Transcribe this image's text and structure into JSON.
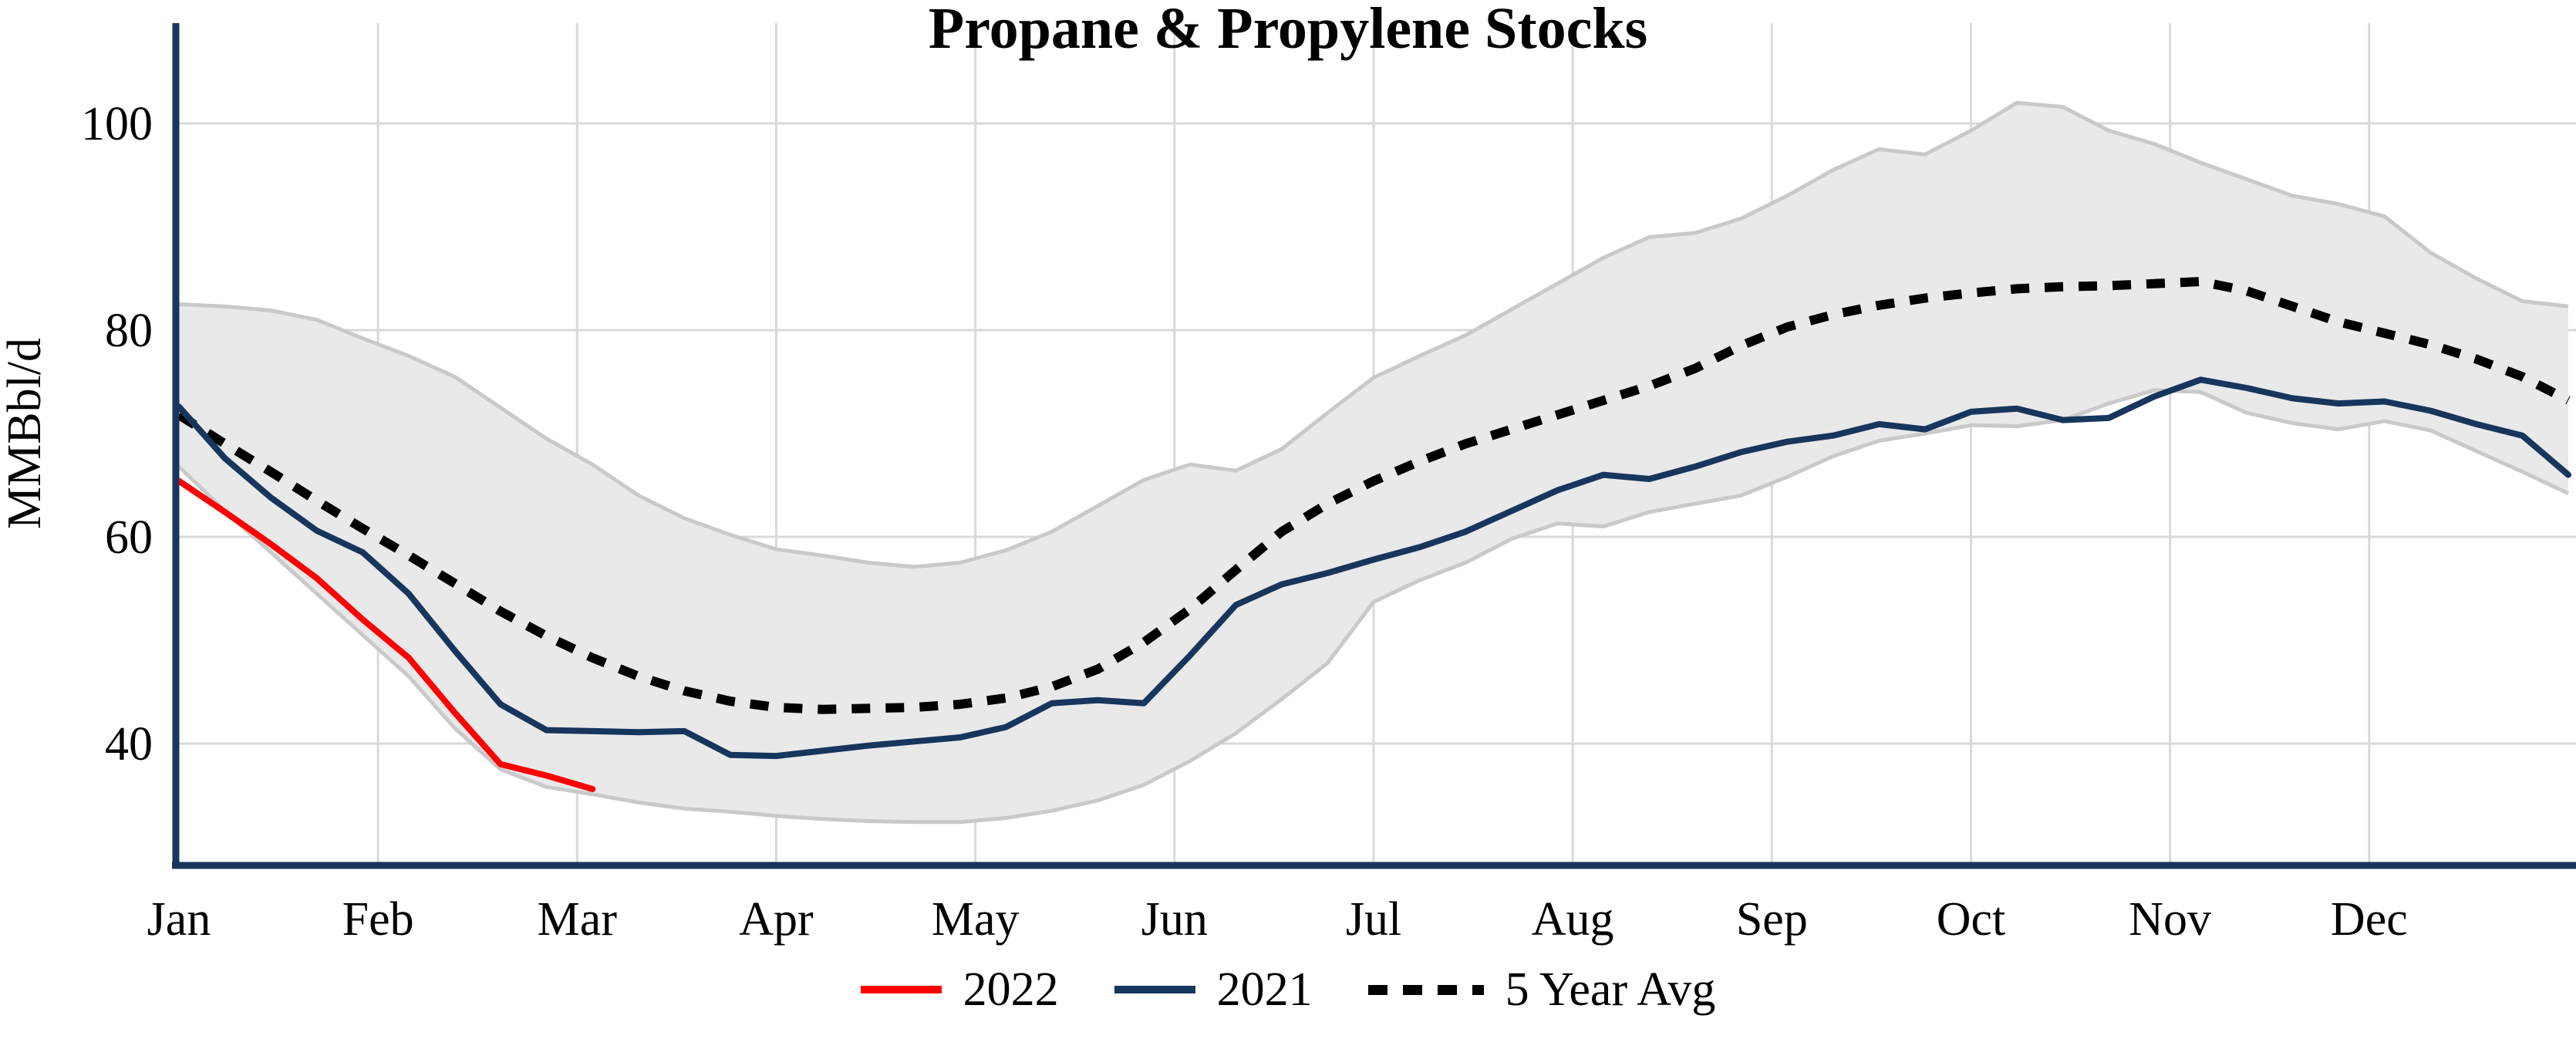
{
  "title": "Propane & Propylene Stocks",
  "y_axis": {
    "label": "MMBbl/d",
    "ticks": [
      40,
      60,
      80,
      100
    ],
    "value_min": 28.5,
    "value_max": 105.5
  },
  "x_axis": {
    "months": [
      "Jan",
      "Feb",
      "Mar",
      "Apr",
      "May",
      "Jun",
      "Jul",
      "Aug",
      "Sep",
      "Oct",
      "Nov",
      "Dec"
    ]
  },
  "legend": [
    {
      "label": "2022",
      "color": "#ff0000",
      "style": "solid"
    },
    {
      "label": "2021",
      "color": "#17365d",
      "style": "solid"
    },
    {
      "label": "5 Year Avg",
      "color": "#000000",
      "style": "dotted"
    }
  ],
  "colors": {
    "axis": "#17365d",
    "gridline": "#d9d9d9",
    "band_fill": "#e9e9e9",
    "band_edge": "#c9c9c9",
    "line_2021": "#17365d",
    "line_2022": "#ff0000",
    "line_avg": "#000000",
    "tick_text": "#000000"
  },
  "chart_data": {
    "type": "line",
    "title": "Propane & Propylene Stocks",
    "xlabel": "",
    "ylabel": "MMBbl/d",
    "x_unit": "week_of_year",
    "weeks_per_year": 53,
    "ylim": [
      28.5,
      105.5
    ],
    "grid": "on",
    "legend_position": "bottom",
    "series": [
      {
        "name": "5 Year Range",
        "type": "band",
        "upper": [
          82.5,
          82.3,
          81.9,
          81.0,
          79.2,
          77.5,
          75.5,
          72.5,
          69.5,
          67.0,
          64.0,
          61.8,
          60.2,
          58.8,
          58.2,
          57.5,
          57.1,
          57.5,
          58.7,
          60.5,
          63.0,
          65.5,
          67.0,
          66.4,
          68.5,
          72.0,
          75.4,
          77.5,
          79.5,
          82.0,
          84.5,
          87.0,
          89.0,
          89.4,
          90.8,
          93.0,
          95.5,
          97.5,
          97.0,
          99.3,
          102.0,
          101.6,
          99.3,
          98.0,
          96.2,
          94.6,
          93.0,
          92.2,
          91.0,
          87.5,
          85.0,
          82.8,
          82.3
        ],
        "lower": [
          66.8,
          62.5,
          58.5,
          54.5,
          50.5,
          46.5,
          41.5,
          37.5,
          35.8,
          35.1,
          34.3,
          33.7,
          33.4,
          33.0,
          32.7,
          32.5,
          32.4,
          32.4,
          32.8,
          33.5,
          34.5,
          36.0,
          38.3,
          41.0,
          44.3,
          47.8,
          53.7,
          55.8,
          57.5,
          59.8,
          61.3,
          61.0,
          62.4,
          63.2,
          64.0,
          65.8,
          67.8,
          69.3,
          70.0,
          70.8,
          70.7,
          71.3,
          72.9,
          74.2,
          74.0,
          72.0,
          71.0,
          70.4,
          71.2,
          70.3,
          68.3,
          66.3,
          64.2
        ]
      },
      {
        "name": "5 Year Avg",
        "type": "line",
        "style": "dotted",
        "values": [
          71.8,
          69.0,
          66.3,
          63.5,
          60.8,
          58.2,
          55.5,
          52.8,
          50.4,
          48.3,
          46.5,
          45.1,
          44.1,
          43.5,
          43.3,
          43.4,
          43.5,
          43.8,
          44.4,
          45.5,
          47.2,
          49.8,
          53.0,
          56.8,
          60.5,
          63.2,
          65.4,
          67.3,
          69.0,
          70.4,
          71.8,
          73.2,
          74.6,
          76.3,
          78.5,
          80.3,
          81.5,
          82.4,
          83.1,
          83.6,
          84.0,
          84.2,
          84.3,
          84.5,
          84.7,
          83.8,
          82.3,
          80.8,
          79.7,
          78.6,
          77.2,
          75.5,
          73.2
        ]
      },
      {
        "name": "2021",
        "type": "line",
        "style": "solid",
        "values": [
          72.6,
          67.6,
          63.8,
          60.6,
          58.5,
          54.5,
          49.0,
          43.8,
          41.3,
          41.2,
          41.1,
          41.2,
          38.9,
          38.8,
          39.3,
          39.8,
          40.2,
          40.6,
          41.6,
          43.9,
          44.2,
          43.9,
          48.5,
          53.4,
          55.4,
          56.5,
          57.8,
          59.0,
          60.5,
          62.5,
          64.5,
          66.0,
          65.6,
          66.8,
          68.2,
          69.2,
          69.8,
          70.9,
          70.4,
          72.1,
          72.4,
          71.3,
          71.5,
          73.6,
          75.2,
          74.4,
          73.4,
          72.9,
          73.1,
          72.2,
          70.9,
          69.8,
          66.0
        ]
      },
      {
        "name": "2022",
        "type": "line",
        "style": "solid",
        "values": [
          65.4,
          62.4,
          59.3,
          56.0,
          52.0,
          48.3,
          43.0,
          38.0,
          36.9,
          35.6
        ]
      }
    ]
  }
}
